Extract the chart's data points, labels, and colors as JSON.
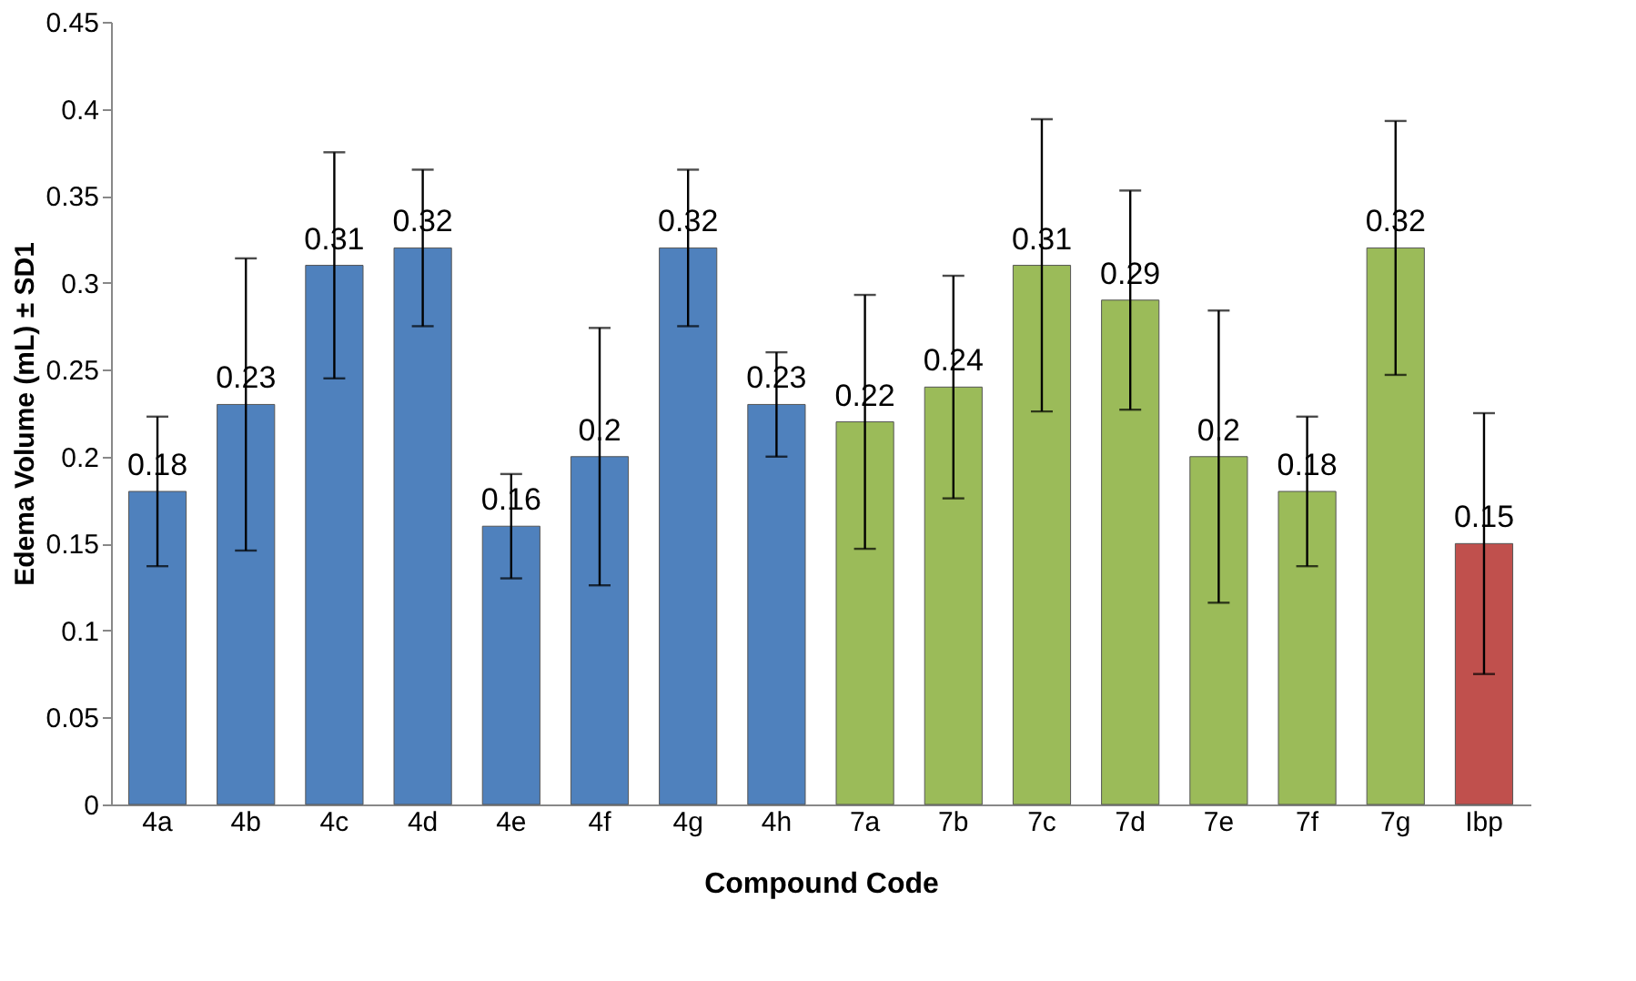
{
  "chart_data": {
    "type": "bar",
    "xlabel": "Compound Code",
    "ylabel": "Edema Volume (mL) ± SD1",
    "categories": [
      "4a",
      "4b",
      "4c",
      "4d",
      "4e",
      "4f",
      "4g",
      "4h",
      "7a",
      "7b",
      "7c",
      "7d",
      "7e",
      "7f",
      "7g",
      "Ibp"
    ],
    "values": [
      0.18,
      0.23,
      0.31,
      0.32,
      0.16,
      0.2,
      0.32,
      0.23,
      0.22,
      0.24,
      0.31,
      0.29,
      0.2,
      0.18,
      0.32,
      0.15
    ],
    "errors": [
      0.043,
      0.084,
      0.065,
      0.045,
      0.03,
      0.074,
      0.045,
      0.03,
      0.073,
      0.064,
      0.084,
      0.063,
      0.084,
      0.043,
      0.073,
      0.075
    ],
    "colors": [
      "#4f81bd",
      "#4f81bd",
      "#4f81bd",
      "#4f81bd",
      "#4f81bd",
      "#4f81bd",
      "#4f81bd",
      "#4f81bd",
      "#9bbb59",
      "#9bbb59",
      "#9bbb59",
      "#9bbb59",
      "#9bbb59",
      "#9bbb59",
      "#9bbb59",
      "#c0504d"
    ],
    "ylim": [
      0,
      0.45
    ],
    "yticks": [
      0,
      0.05,
      0.1,
      0.15,
      0.2,
      0.25,
      0.3,
      0.35,
      0.4,
      0.45
    ],
    "data_labels": true,
    "grid": false
  }
}
